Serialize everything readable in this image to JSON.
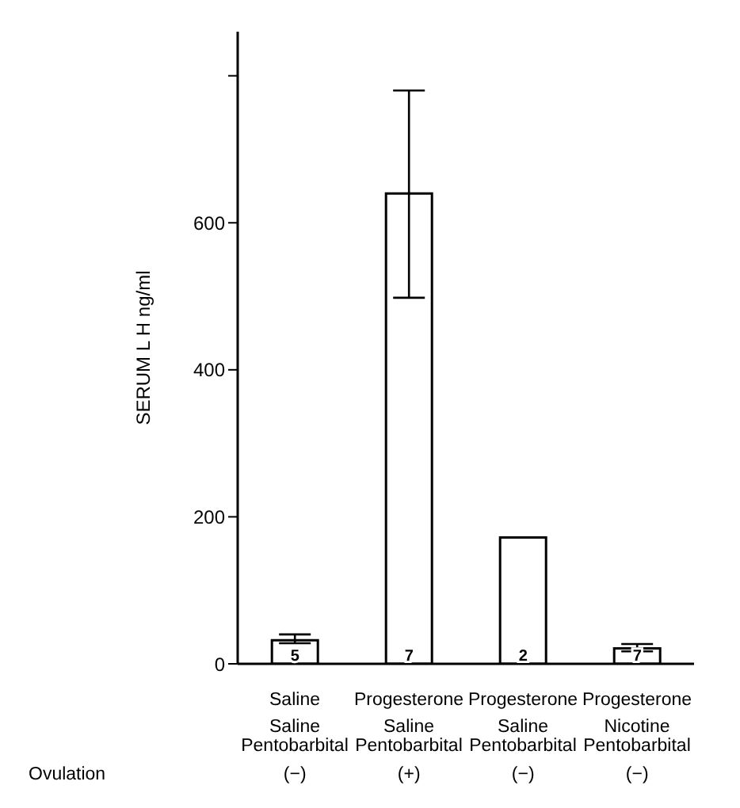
{
  "chart_data": {
    "type": "bar",
    "ylabel": "SERUM L H ng/ml",
    "categories": [
      "Saline\nSaline\nPentobarbital",
      "Progesterone\nSaline\nPentobarbital",
      "Progesterone\nSaline\nPentobarbital",
      "Progesterone\nNicotine\nPentobarbital"
    ],
    "values": [
      32,
      640,
      172,
      21
    ],
    "errors": [
      [
        28,
        40
      ],
      [
        498,
        780
      ],
      null,
      [
        17,
        27
      ]
    ],
    "color": "#ffffff",
    "ylim": [
      0,
      860
    ],
    "yticks": [
      0,
      200,
      400,
      600,
      {
        "value": 800,
        "label": null
      }
    ],
    "grid": false,
    "annotations": [
      "5",
      "7",
      "2",
      "7",
      "Ovulation",
      "(−)",
      "(+)",
      "(−)",
      "(−)"
    ]
  }
}
